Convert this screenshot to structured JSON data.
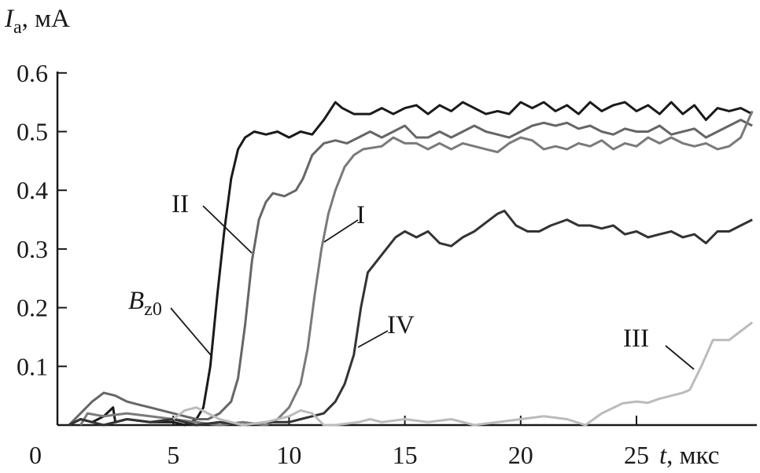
{
  "chart_data": {
    "type": "line",
    "title": "",
    "ylabel": {
      "symbol": "I",
      "subscript": "a",
      "unit": ", мА"
    },
    "xlabel": {
      "symbol": "t",
      "unit": ", мкс"
    },
    "xlim": [
      0,
      30
    ],
    "ylim": [
      0,
      0.6
    ],
    "xticks": [
      "0",
      "5",
      "10",
      "15",
      "20",
      "25"
    ],
    "yticks": [
      "0.1",
      "0.2",
      "0.3",
      "0.4",
      "0.5",
      "0.6"
    ],
    "grid": false,
    "legend": "none (curves labeled directly)",
    "series": [
      {
        "name": "Bz0",
        "label_main": "B",
        "label_sub": "z0",
        "color": "#1a1a1a",
        "points": [
          [
            0.5,
            0
          ],
          [
            1,
            0.01
          ],
          [
            1.5,
            0.005
          ],
          [
            2,
            0.015
          ],
          [
            2.4,
            0.03
          ],
          [
            2.5,
            0.005
          ],
          [
            3,
            0.01
          ],
          [
            4,
            0.005
          ],
          [
            5,
            0.005
          ],
          [
            5.5,
            0
          ],
          [
            6,
            0.01
          ],
          [
            6.3,
            0.03
          ],
          [
            6.6,
            0.1
          ],
          [
            6.9,
            0.22
          ],
          [
            7.2,
            0.33
          ],
          [
            7.5,
            0.42
          ],
          [
            7.8,
            0.47
          ],
          [
            8.1,
            0.49
          ],
          [
            8.5,
            0.5
          ],
          [
            9,
            0.495
          ],
          [
            9.5,
            0.5
          ],
          [
            10,
            0.49
          ],
          [
            10.5,
            0.5
          ],
          [
            11,
            0.495
          ],
          [
            11.5,
            0.52
          ],
          [
            12,
            0.55
          ],
          [
            12.3,
            0.54
          ],
          [
            12.8,
            0.53
          ],
          [
            13.5,
            0.53
          ],
          [
            14,
            0.54
          ],
          [
            14.5,
            0.53
          ],
          [
            15,
            0.54
          ],
          [
            15.5,
            0.545
          ],
          [
            16,
            0.53
          ],
          [
            16.5,
            0.545
          ],
          [
            17,
            0.535
          ],
          [
            17.5,
            0.55
          ],
          [
            18,
            0.54
          ],
          [
            18.5,
            0.53
          ],
          [
            19,
            0.535
          ],
          [
            19.5,
            0.53
          ],
          [
            20,
            0.55
          ],
          [
            20.5,
            0.54
          ],
          [
            21,
            0.55
          ],
          [
            21.5,
            0.535
          ],
          [
            22,
            0.545
          ],
          [
            22.5,
            0.53
          ],
          [
            23,
            0.55
          ],
          [
            23.5,
            0.535
          ],
          [
            24,
            0.545
          ],
          [
            24.5,
            0.55
          ],
          [
            25,
            0.535
          ],
          [
            25.5,
            0.545
          ],
          [
            26,
            0.53
          ],
          [
            26.5,
            0.55
          ],
          [
            27,
            0.53
          ],
          [
            27.5,
            0.545
          ],
          [
            28,
            0.52
          ],
          [
            28.5,
            0.54
          ],
          [
            29,
            0.535
          ],
          [
            29.5,
            0.54
          ],
          [
            30,
            0.53
          ]
        ]
      },
      {
        "name": "II",
        "color": "#666666",
        "points": [
          [
            0.5,
            0
          ],
          [
            1,
            0.02
          ],
          [
            1.5,
            0.04
          ],
          [
            2,
            0.055
          ],
          [
            2.5,
            0.05
          ],
          [
            3,
            0.04
          ],
          [
            3.5,
            0.035
          ],
          [
            4,
            0.03
          ],
          [
            4.5,
            0.025
          ],
          [
            5,
            0.02
          ],
          [
            5.5,
            0.015
          ],
          [
            6,
            0.01
          ],
          [
            6.5,
            0.01
          ],
          [
            7,
            0.02
          ],
          [
            7.5,
            0.04
          ],
          [
            7.8,
            0.08
          ],
          [
            8.1,
            0.17
          ],
          [
            8.4,
            0.28
          ],
          [
            8.7,
            0.35
          ],
          [
            9,
            0.38
          ],
          [
            9.3,
            0.395
          ],
          [
            9.8,
            0.39
          ],
          [
            10.3,
            0.4
          ],
          [
            10.6,
            0.42
          ],
          [
            11,
            0.46
          ],
          [
            11.5,
            0.48
          ],
          [
            12,
            0.485
          ],
          [
            12.5,
            0.48
          ],
          [
            13,
            0.49
          ],
          [
            13.5,
            0.5
          ],
          [
            14,
            0.49
          ],
          [
            14.5,
            0.5
          ],
          [
            15,
            0.51
          ],
          [
            15.5,
            0.49
          ],
          [
            16,
            0.49
          ],
          [
            16.5,
            0.5
          ],
          [
            17,
            0.49
          ],
          [
            17.5,
            0.5
          ],
          [
            18,
            0.51
          ],
          [
            18.5,
            0.5
          ],
          [
            19,
            0.495
          ],
          [
            19.5,
            0.49
          ],
          [
            20,
            0.5
          ],
          [
            20.5,
            0.51
          ],
          [
            21,
            0.515
          ],
          [
            21.5,
            0.51
          ],
          [
            22,
            0.515
          ],
          [
            22.5,
            0.505
          ],
          [
            23,
            0.51
          ],
          [
            23.5,
            0.5
          ],
          [
            24,
            0.495
          ],
          [
            24.5,
            0.505
          ],
          [
            25,
            0.5
          ],
          [
            25.5,
            0.5
          ],
          [
            26,
            0.51
          ],
          [
            26.5,
            0.495
          ],
          [
            27,
            0.5
          ],
          [
            27.5,
            0.505
          ],
          [
            28,
            0.49
          ],
          [
            28.5,
            0.5
          ],
          [
            29,
            0.51
          ],
          [
            29.5,
            0.52
          ],
          [
            30,
            0.51
          ]
        ]
      },
      {
        "name": "I",
        "color": "#7a7a7a",
        "points": [
          [
            1,
            0
          ],
          [
            1.3,
            0.02
          ],
          [
            2,
            0.015
          ],
          [
            3,
            0.02
          ],
          [
            4,
            0.015
          ],
          [
            5,
            0.01
          ],
          [
            6,
            0.005
          ],
          [
            7,
            0
          ],
          [
            8,
            0.005
          ],
          [
            9,
            0
          ],
          [
            9.5,
            0.01
          ],
          [
            10,
            0.03
          ],
          [
            10.5,
            0.07
          ],
          [
            10.8,
            0.13
          ],
          [
            11.1,
            0.22
          ],
          [
            11.4,
            0.3
          ],
          [
            11.7,
            0.36
          ],
          [
            12,
            0.4
          ],
          [
            12.4,
            0.44
          ],
          [
            12.8,
            0.46
          ],
          [
            13.2,
            0.47
          ],
          [
            14,
            0.475
          ],
          [
            14.5,
            0.49
          ],
          [
            15,
            0.48
          ],
          [
            15.5,
            0.48
          ],
          [
            16,
            0.47
          ],
          [
            16.5,
            0.48
          ],
          [
            17,
            0.47
          ],
          [
            17.5,
            0.48
          ],
          [
            18,
            0.475
          ],
          [
            18.5,
            0.47
          ],
          [
            19,
            0.465
          ],
          [
            19.5,
            0.48
          ],
          [
            20,
            0.49
          ],
          [
            20.5,
            0.485
          ],
          [
            21,
            0.47
          ],
          [
            21.5,
            0.475
          ],
          [
            22,
            0.47
          ],
          [
            22.5,
            0.48
          ],
          [
            23,
            0.475
          ],
          [
            23.5,
            0.485
          ],
          [
            24,
            0.47
          ],
          [
            24.5,
            0.48
          ],
          [
            25,
            0.475
          ],
          [
            25.5,
            0.49
          ],
          [
            26,
            0.48
          ],
          [
            26.5,
            0.49
          ],
          [
            27,
            0.48
          ],
          [
            27.5,
            0.475
          ],
          [
            28,
            0.48
          ],
          [
            28.5,
            0.47
          ],
          [
            29,
            0.475
          ],
          [
            29.5,
            0.49
          ],
          [
            30,
            0.535
          ]
        ]
      },
      {
        "name": "IV",
        "color": "#333333",
        "points": [
          [
            0.5,
            0
          ],
          [
            1,
            0.01
          ],
          [
            2,
            0
          ],
          [
            3,
            0.01
          ],
          [
            4,
            0.005
          ],
          [
            5,
            0.01
          ],
          [
            6,
            0
          ],
          [
            7,
            0.005
          ],
          [
            8,
            0
          ],
          [
            9,
            0.005
          ],
          [
            10,
            0.005
          ],
          [
            10.5,
            0.01
          ],
          [
            11,
            0.015
          ],
          [
            11.5,
            0.02
          ],
          [
            12,
            0.04
          ],
          [
            12.4,
            0.07
          ],
          [
            12.8,
            0.12
          ],
          [
            13.1,
            0.2
          ],
          [
            13.4,
            0.26
          ],
          [
            13.8,
            0.28
          ],
          [
            14.2,
            0.3
          ],
          [
            14.6,
            0.32
          ],
          [
            15,
            0.33
          ],
          [
            15.5,
            0.32
          ],
          [
            16,
            0.33
          ],
          [
            16.5,
            0.31
          ],
          [
            17,
            0.305
          ],
          [
            17.5,
            0.32
          ],
          [
            18,
            0.33
          ],
          [
            18.5,
            0.345
          ],
          [
            19,
            0.36
          ],
          [
            19.3,
            0.365
          ],
          [
            19.8,
            0.34
          ],
          [
            20.3,
            0.33
          ],
          [
            20.8,
            0.33
          ],
          [
            21.3,
            0.34
          ],
          [
            22,
            0.35
          ],
          [
            22.5,
            0.34
          ],
          [
            23,
            0.34
          ],
          [
            23.5,
            0.335
          ],
          [
            24,
            0.34
          ],
          [
            24.5,
            0.325
          ],
          [
            25,
            0.33
          ],
          [
            25.5,
            0.32
          ],
          [
            26,
            0.325
          ],
          [
            26.5,
            0.33
          ],
          [
            27,
            0.32
          ],
          [
            27.5,
            0.325
          ],
          [
            28,
            0.31
          ],
          [
            28.5,
            0.33
          ],
          [
            29,
            0.33
          ],
          [
            29.5,
            0.34
          ],
          [
            30,
            0.35
          ]
        ]
      },
      {
        "name": "III",
        "color": "#bbbbbb",
        "points": [
          [
            5,
            0.01
          ],
          [
            5.5,
            0.025
          ],
          [
            6,
            0.03
          ],
          [
            6.5,
            0.02
          ],
          [
            7,
            0.01
          ],
          [
            8,
            0
          ],
          [
            9,
            0.005
          ],
          [
            10,
            0.015
          ],
          [
            10.5,
            0.025
          ],
          [
            11,
            0.02
          ],
          [
            11.5,
            0
          ],
          [
            12,
            0
          ],
          [
            13,
            0.005
          ],
          [
            13.5,
            0.01
          ],
          [
            14,
            0.005
          ],
          [
            15,
            0.01
          ],
          [
            16,
            0.005
          ],
          [
            17,
            0.01
          ],
          [
            18,
            0
          ],
          [
            19,
            0.005
          ],
          [
            20,
            0.01
          ],
          [
            21,
            0.015
          ],
          [
            22,
            0.01
          ],
          [
            22.8,
            0
          ],
          [
            23.5,
            0.02
          ],
          [
            24.4,
            0.037
          ],
          [
            25,
            0.04
          ],
          [
            25.5,
            0.038
          ],
          [
            26,
            0.045
          ],
          [
            27,
            0.055
          ],
          [
            27.3,
            0.06
          ],
          [
            27.8,
            0.1
          ],
          [
            28.3,
            0.145
          ],
          [
            29,
            0.145
          ],
          [
            29.5,
            0.16
          ],
          [
            30,
            0.175
          ]
        ]
      }
    ]
  }
}
